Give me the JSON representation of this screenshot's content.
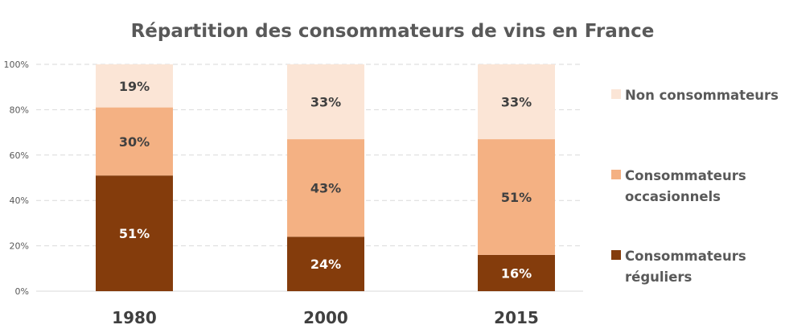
{
  "chart_data": {
    "type": "bar",
    "stacked": true,
    "percent_stacked": true,
    "title": "Répartition des consommateurs de vins en France",
    "categories": [
      "1980",
      "2000",
      "2015"
    ],
    "series": [
      {
        "name": "Consommateurs réguliers",
        "legend_lines": [
          "Consommateurs",
          "réguliers"
        ],
        "values": [
          51,
          24,
          16
        ],
        "labels": [
          "51%",
          "24%",
          "16%"
        ],
        "color": "#843C0C",
        "label_color": "#FFFFFF"
      },
      {
        "name": "Consommateurs occasionnels",
        "legend_lines": [
          "Consommateurs",
          "occasionnels"
        ],
        "values": [
          30,
          43,
          51
        ],
        "labels": [
          "30%",
          "43%",
          "51%"
        ],
        "color": "#F4B183",
        "label_color": "#404040"
      },
      {
        "name": "Non consommateurs",
        "legend_lines": [
          "Non consommateurs"
        ],
        "values": [
          19,
          33,
          33
        ],
        "labels": [
          "19%",
          "33%",
          "33%"
        ],
        "color": "#FBE5D6",
        "label_color": "#404040"
      }
    ],
    "ylim": [
      0,
      100
    ],
    "yticks": [
      "0%",
      "20%",
      "40%",
      "60%",
      "80%",
      "100%"
    ],
    "grid": "dashed horizontal",
    "legend_position": "right"
  }
}
